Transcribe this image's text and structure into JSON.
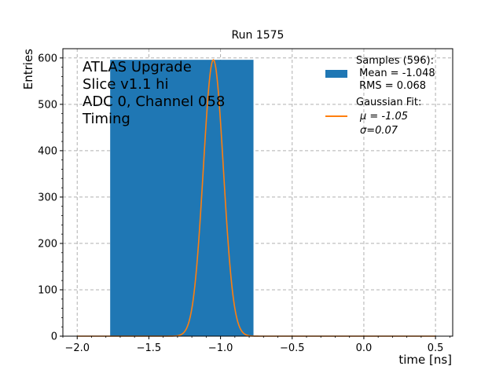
{
  "chart_data": {
    "type": "bar",
    "title": "Run 1575",
    "xlabel": "time [ns]",
    "ylabel": "Entries",
    "xlim": [
      -2.1,
      0.62
    ],
    "ylim": [
      0,
      620
    ],
    "xticks": [
      -2.0,
      -1.5,
      -1.0,
      -0.5,
      0.0,
      0.5
    ],
    "xtick_labels": [
      "−2.0",
      "−1.5",
      "−1.0",
      "−0.5",
      "0.0",
      "0.5"
    ],
    "yticks": [
      0,
      100,
      200,
      300,
      400,
      500,
      600
    ],
    "ytick_labels": [
      "0",
      "100",
      "200",
      "300",
      "400",
      "500",
      "600"
    ],
    "grid": true,
    "legend_position": "top-right",
    "annotation_lines": [
      "ATLAS Upgrade",
      "Slice v1.1 hi",
      "ADC 0, Channel 058",
      "Timing"
    ],
    "histogram": {
      "bins": [
        {
          "x0": -1.77,
          "x1": -0.77,
          "count": 596
        }
      ],
      "color": "#1f77b4",
      "legend_lines": [
        "Samples (596):",
        " Mean = -1.048",
        " RMS = 0.068"
      ]
    },
    "fit": {
      "name": "Gaussian Fit",
      "mu": -1.05,
      "sigma": 0.07,
      "amplitude": 596,
      "x_range": [
        -2.0,
        0.5
      ],
      "color": "#ff7f0e",
      "legend_lines": [
        "Gaussian Fit:",
        "μ = -1.05",
        "σ=0.07"
      ]
    }
  }
}
